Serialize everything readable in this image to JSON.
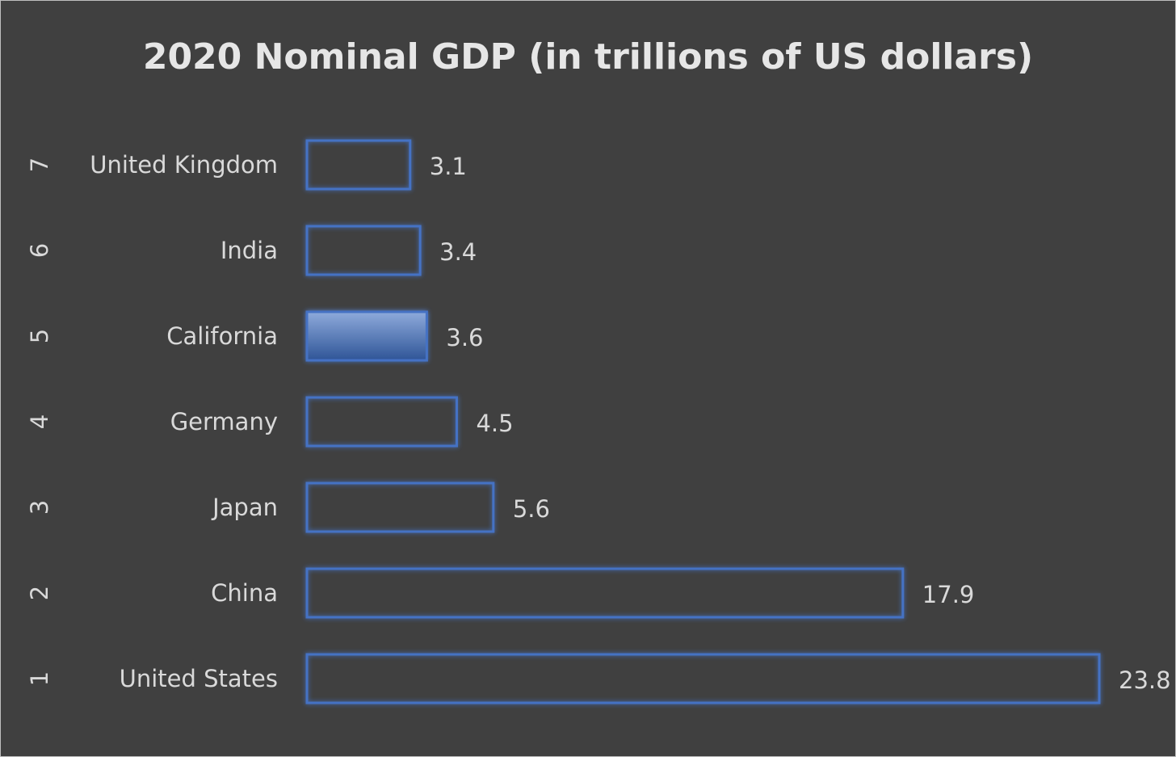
{
  "chart_data": {
    "type": "bar",
    "orientation": "horizontal",
    "title": "2020 Nominal GDP (in trillions of US dollars)",
    "categories": [
      "United States",
      "China",
      "Japan",
      "Germany",
      "California",
      "India",
      "United Kingdom"
    ],
    "ranks": [
      "1",
      "2",
      "3",
      "4",
      "5",
      "6",
      "7"
    ],
    "values": [
      23.8,
      17.9,
      5.6,
      4.5,
      3.6,
      3.4,
      3.1
    ],
    "highlighted_category": "California",
    "xlim": [
      0,
      23.8
    ],
    "grid": false,
    "legend": "none",
    "colors": {
      "background": "#404040",
      "bar_outline": "#4472c4",
      "bar_fill_highlight_top": "#8eaadb",
      "bar_fill_highlight_bottom": "#2f5597",
      "text": "#d9d9d9",
      "title": "#e6e6e6"
    }
  }
}
